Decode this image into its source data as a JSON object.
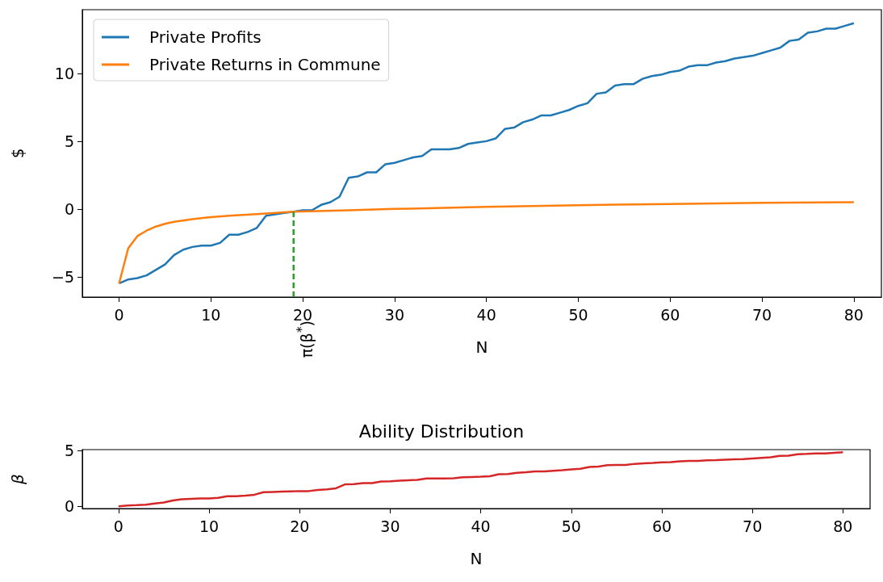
{
  "chart_data": [
    {
      "type": "line",
      "xlabel": "N",
      "ylabel": "$",
      "legend": "top left",
      "marker": "none",
      "xlim": [
        -4,
        83
      ],
      "ylim": [
        -6.5,
        14.7
      ],
      "xticks": [
        0,
        10,
        20,
        30,
        40,
        50,
        60,
        70,
        80
      ],
      "yticks": [
        -5,
        0,
        5,
        10
      ],
      "annotations": [
        {
          "text": "π(β$^{*}$)",
          "x": 19,
          "y": -6.5
        }
      ],
      "series": [
        {
          "name": "Private Profits",
          "color": "#1f77b4",
          "x": [
            0,
            1,
            2,
            3,
            4,
            5,
            6,
            7,
            8,
            9,
            10,
            11,
            12,
            13,
            14,
            15,
            16,
            17,
            18,
            19,
            20,
            21,
            22,
            23,
            24,
            25,
            26,
            27,
            28,
            29,
            30,
            31,
            32,
            33,
            34,
            35,
            36,
            37,
            38,
            39,
            40,
            41,
            42,
            43,
            44,
            45,
            46,
            47,
            48,
            49,
            50,
            51,
            52,
            53,
            54,
            55,
            56,
            57,
            58,
            59,
            60,
            61,
            62,
            63,
            64,
            65,
            66,
            67,
            68,
            69,
            70,
            71,
            72,
            73,
            74,
            75,
            76,
            77,
            78,
            79,
            80
          ],
          "values": [
            -5.5,
            -5.2,
            -5.1,
            -4.9,
            -4.5,
            -4.1,
            -3.4,
            -3.0,
            -2.8,
            -2.7,
            -2.7,
            -2.5,
            -1.9,
            -1.9,
            -1.7,
            -1.4,
            -0.5,
            -0.4,
            -0.3,
            -0.2,
            -0.1,
            -0.1,
            0.3,
            0.5,
            0.9,
            2.3,
            2.4,
            2.7,
            2.7,
            3.3,
            3.4,
            3.6,
            3.8,
            3.9,
            4.4,
            4.4,
            4.4,
            4.5,
            4.8,
            4.9,
            5.0,
            5.2,
            5.9,
            6.0,
            6.4,
            6.6,
            6.9,
            6.9,
            7.1,
            7.3,
            7.6,
            7.8,
            8.5,
            8.6,
            9.1,
            9.2,
            9.2,
            9.6,
            9.8,
            9.9,
            10.1,
            10.2,
            10.5,
            10.6,
            10.6,
            10.8,
            10.9,
            11.1,
            11.2,
            11.3,
            11.5,
            11.7,
            11.9,
            12.4,
            12.5,
            13.0,
            13.1,
            13.3,
            13.3,
            13.5,
            13.7
          ]
        },
        {
          "name": "Private Returns in Commune",
          "color": "#ff7f0e",
          "x": [
            0,
            1,
            2,
            3,
            4,
            5,
            6,
            8,
            10,
            12,
            15,
            19,
            25,
            30,
            40,
            50,
            60,
            70,
            80
          ],
          "values": [
            -5.5,
            -2.9,
            -2.0,
            -1.6,
            -1.3,
            -1.1,
            -0.95,
            -0.75,
            -0.6,
            -0.5,
            -0.38,
            -0.2,
            -0.1,
            0.0,
            0.15,
            0.28,
            0.37,
            0.45,
            0.5
          ]
        },
        {
          "color": "#2ca02c",
          "line_style": "dashed",
          "x": [
            19,
            19
          ],
          "values": [
            -6.5,
            -0.2
          ]
        }
      ]
    },
    {
      "type": "line",
      "title": "Ability Distribution",
      "xlabel": "N",
      "ylabel": "β",
      "legend": false,
      "marker": "none",
      "xlim": [
        -4,
        83
      ],
      "ylim": [
        -0.2,
        5.1
      ],
      "xticks": [
        0,
        10,
        20,
        30,
        40,
        50,
        60,
        70,
        80
      ],
      "yticks": [
        0,
        5
      ],
      "series": [
        {
          "color": "#d62728",
          "x": [
            0,
            1,
            2,
            3,
            4,
            5,
            6,
            7,
            8,
            9,
            10,
            11,
            12,
            13,
            14,
            15,
            16,
            17,
            18,
            19,
            20,
            21,
            22,
            23,
            24,
            25,
            26,
            27,
            28,
            29,
            30,
            31,
            32,
            33,
            34,
            35,
            36,
            37,
            38,
            39,
            40,
            41,
            42,
            43,
            44,
            45,
            46,
            47,
            48,
            49,
            50,
            51,
            52,
            53,
            54,
            55,
            56,
            57,
            58,
            59,
            60,
            61,
            62,
            63,
            64,
            65,
            66,
            67,
            68,
            69,
            70,
            71,
            72,
            73,
            74,
            75,
            76,
            77,
            78,
            79,
            80
          ],
          "values": [
            0,
            0.08,
            0.1,
            0.15,
            0.25,
            0.35,
            0.53,
            0.63,
            0.68,
            0.71,
            0.71,
            0.76,
            0.91,
            0.91,
            0.96,
            1.04,
            1.27,
            1.29,
            1.32,
            1.34,
            1.37,
            1.37,
            1.47,
            1.52,
            1.62,
            1.97,
            2.0,
            2.08,
            2.08,
            2.23,
            2.25,
            2.3,
            2.35,
            2.38,
            2.51,
            2.51,
            2.51,
            2.53,
            2.61,
            2.63,
            2.66,
            2.71,
            2.89,
            2.91,
            3.01,
            3.06,
            3.14,
            3.14,
            3.19,
            3.24,
            3.32,
            3.37,
            3.54,
            3.57,
            3.7,
            3.72,
            3.72,
            3.82,
            3.87,
            3.9,
            3.95,
            3.97,
            4.05,
            4.08,
            4.08,
            4.13,
            4.15,
            4.2,
            4.23,
            4.25,
            4.3,
            4.35,
            4.41,
            4.53,
            4.56,
            4.68,
            4.71,
            4.76,
            4.76,
            4.81,
            4.86
          ]
        }
      ]
    }
  ]
}
